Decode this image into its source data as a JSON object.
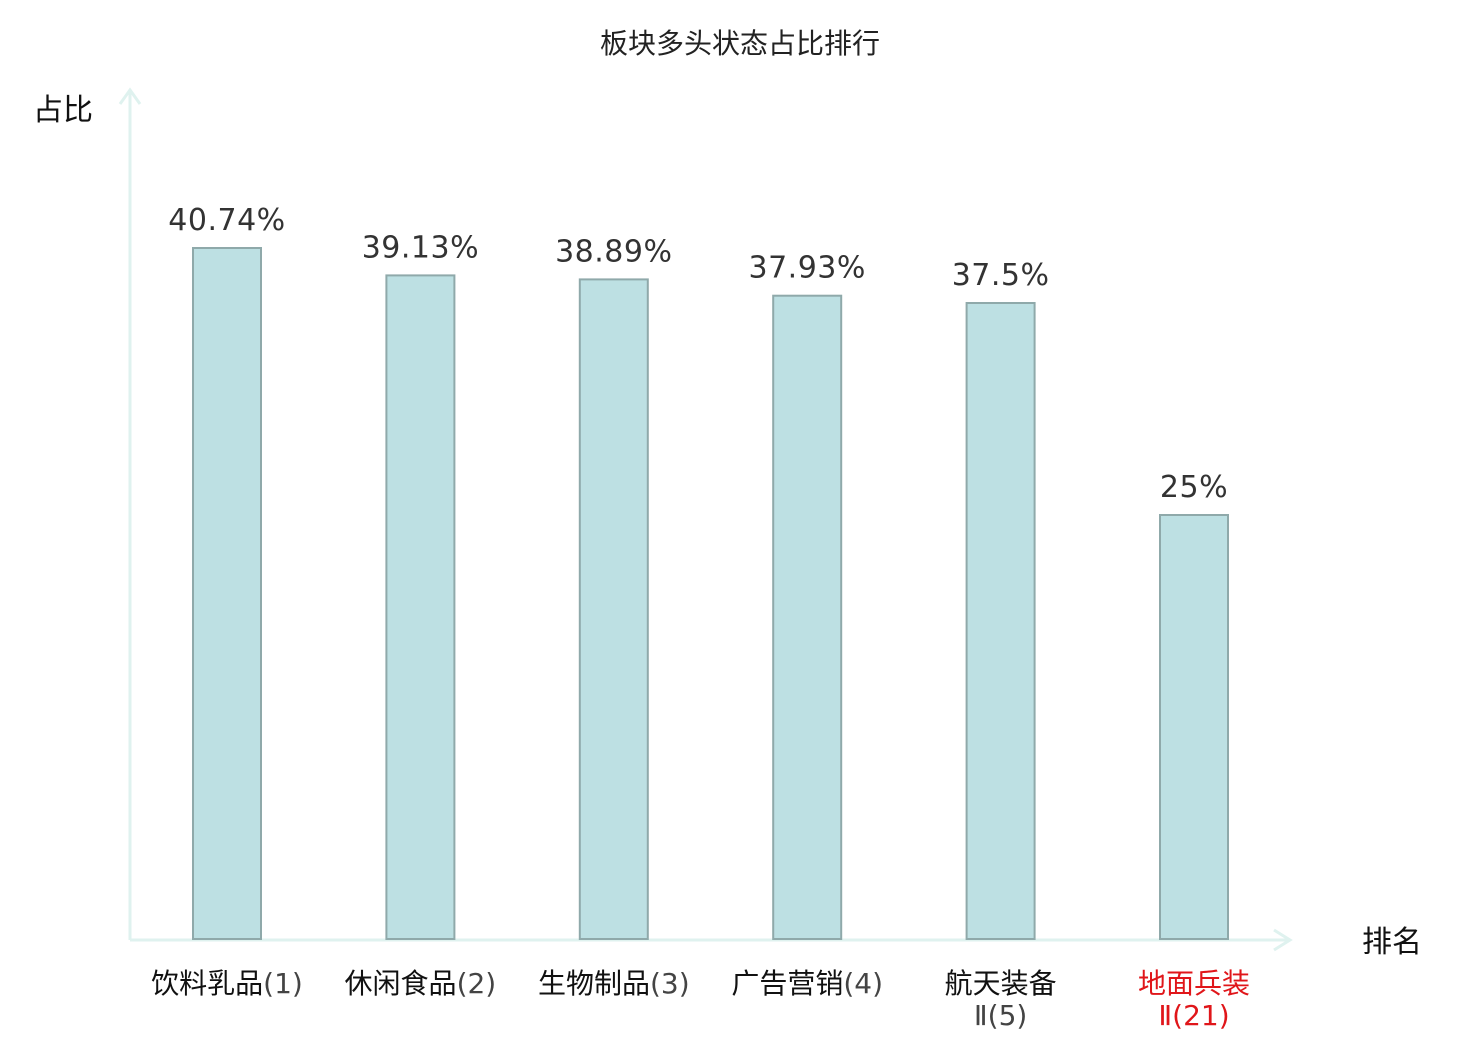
{
  "chart_data": {
    "type": "bar",
    "title": "板块多头状态占比排行",
    "ylabel": "占比",
    "xlabel": "排名",
    "ylim": [
      0,
      50
    ],
    "grid": false,
    "categories": [
      {
        "name": "饮料乳品",
        "rank": "(1)",
        "name_line2": "",
        "highlight": false
      },
      {
        "name": "休闲食品",
        "rank": "(2)",
        "name_line2": "",
        "highlight": false
      },
      {
        "name": "生物制品",
        "rank": "(3)",
        "name_line2": "",
        "highlight": false
      },
      {
        "name": "广告营销",
        "rank": "(4)",
        "name_line2": "",
        "highlight": false
      },
      {
        "name": "航天装备",
        "rank": "(5)",
        "name_line2": "Ⅱ",
        "highlight": false
      },
      {
        "name": "地面兵装",
        "rank": "(21)",
        "name_line2": "Ⅱ",
        "highlight": true
      }
    ],
    "values": [
      40.74,
      39.13,
      38.89,
      37.93,
      37.5,
      25
    ],
    "value_labels": [
      "40.74%",
      "39.13%",
      "38.89%",
      "37.93%",
      "37.5%",
      "25%"
    ]
  },
  "colors": {
    "bar_fill": "#bde0e3",
    "bar_stroke": "#8fa9aa",
    "axis": "#dff2ef",
    "label_normal": "#111111",
    "rank_normal": "#444444",
    "label_highlight": "#e0161a"
  }
}
